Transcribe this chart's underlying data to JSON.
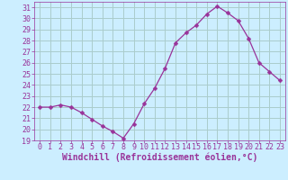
{
  "x": [
    0,
    1,
    2,
    3,
    4,
    5,
    6,
    7,
    8,
    9,
    10,
    11,
    12,
    13,
    14,
    15,
    16,
    17,
    18,
    19,
    20,
    21,
    22,
    23
  ],
  "y": [
    22.0,
    22.0,
    22.2,
    22.0,
    21.5,
    20.9,
    20.3,
    19.8,
    19.2,
    20.5,
    22.3,
    23.7,
    25.5,
    27.8,
    28.7,
    29.4,
    30.4,
    31.1,
    30.5,
    29.8,
    28.2,
    26.0,
    25.2,
    24.4
  ],
  "line_color": "#993399",
  "marker": "D",
  "marker_size": 2.5,
  "bg_color": "#cceeff",
  "grid_color": "#aacccc",
  "xlabel": "Windchill (Refroidissement éolien,°C)",
  "ylabel_ticks": [
    19,
    20,
    21,
    22,
    23,
    24,
    25,
    26,
    27,
    28,
    29,
    30,
    31
  ],
  "xtick_labels": [
    "0",
    "1",
    "2",
    "3",
    "4",
    "5",
    "6",
    "7",
    "8",
    "9",
    "10",
    "11",
    "12",
    "13",
    "14",
    "15",
    "16",
    "17",
    "18",
    "19",
    "20",
    "21",
    "22",
    "23"
  ],
  "xlim": [
    -0.5,
    23.5
  ],
  "ylim": [
    19,
    31.5
  ],
  "tick_color": "#993399",
  "xlabel_color": "#993399",
  "tick_fontsize": 6,
  "xlabel_fontsize": 7
}
